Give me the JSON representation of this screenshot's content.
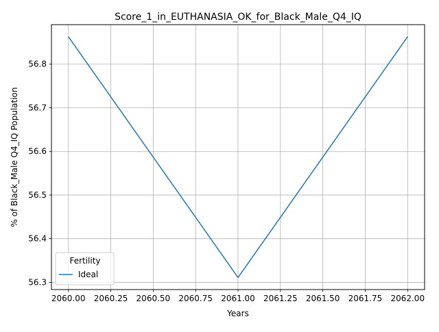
{
  "chart_data": {
    "type": "line",
    "title": "Score_1_in_EUTHANASIA_OK_for_Black_Male_Q4_IQ",
    "xlabel": "Years",
    "ylabel": "% of Black_Male Q4_IQ Population",
    "x": [
      2060.0,
      2061.0,
      2062.0
    ],
    "series": [
      {
        "name": "Ideal",
        "values": [
          56.863,
          56.311,
          56.863
        ],
        "color": "#1f77b4"
      }
    ],
    "xlim": [
      2059.9,
      2062.1
    ],
    "ylim": [
      56.2834,
      56.8906
    ],
    "xticks": [
      2060.0,
      2060.25,
      2060.5,
      2060.75,
      2061.0,
      2061.25,
      2061.5,
      2061.75,
      2062.0
    ],
    "xtick_labels": [
      "2060.00",
      "2060.25",
      "2060.50",
      "2060.75",
      "2061.00",
      "2061.25",
      "2061.50",
      "2061.75",
      "2062.00"
    ],
    "yticks": [
      56.3,
      56.4,
      56.5,
      56.6,
      56.7,
      56.8
    ],
    "ytick_labels": [
      "56.3",
      "56.4",
      "56.5",
      "56.6",
      "56.7",
      "56.8"
    ],
    "grid": true,
    "legend": {
      "title": "Fertility",
      "placement": "lower-left"
    }
  }
}
